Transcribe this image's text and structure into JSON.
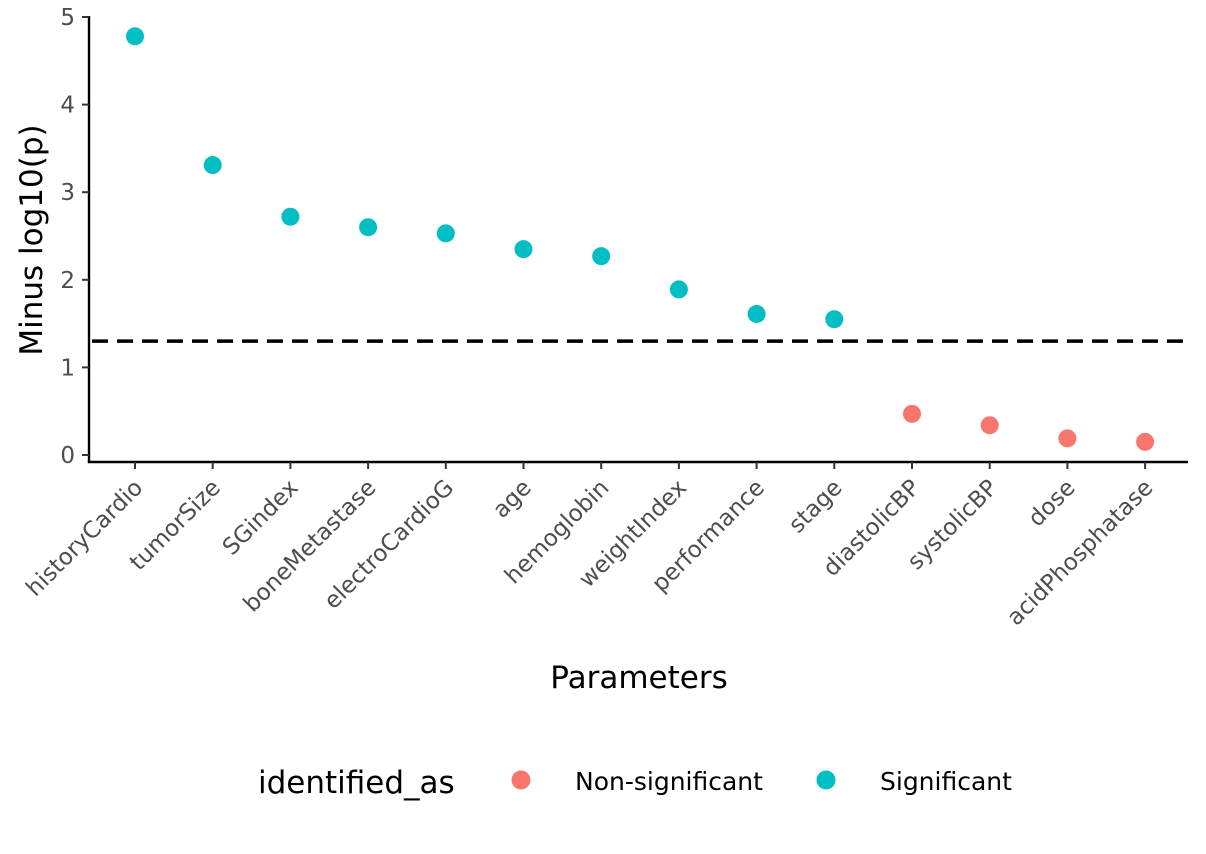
{
  "chart_data": {
    "type": "scatter",
    "title": "",
    "xlabel": "Parameters",
    "ylabel": "Minus log10(p)",
    "ylim": [
      0,
      5
    ],
    "yticks": [
      0,
      1,
      2,
      3,
      4,
      5
    ],
    "grid": false,
    "threshold": 1.3,
    "categories": [
      "historyCardio",
      "tumorSize",
      "SGindex",
      "boneMetastase",
      "electroCardioG",
      "age",
      "hemoglobin",
      "weightIndex",
      "performance",
      "stage",
      "diastolicBP",
      "systolicBP",
      "dose",
      "acidPhosphatase"
    ],
    "series": [
      {
        "name": "Significant",
        "color": "#00BFC4",
        "points": [
          {
            "x": "historyCardio",
            "y": 4.78
          },
          {
            "x": "tumorSize",
            "y": 3.31
          },
          {
            "x": "SGindex",
            "y": 2.72
          },
          {
            "x": "boneMetastase",
            "y": 2.6
          },
          {
            "x": "electroCardioG",
            "y": 2.53
          },
          {
            "x": "age",
            "y": 2.35
          },
          {
            "x": "hemoglobin",
            "y": 2.27
          },
          {
            "x": "weightIndex",
            "y": 1.89
          },
          {
            "x": "performance",
            "y": 1.61
          },
          {
            "x": "stage",
            "y": 1.55
          }
        ]
      },
      {
        "name": "Non-significant",
        "color": "#F8766D",
        "points": [
          {
            "x": "diastolicBP",
            "y": 0.47
          },
          {
            "x": "systolicBP",
            "y": 0.34
          },
          {
            "x": "dose",
            "y": 0.19
          },
          {
            "x": "acidPhosphatase",
            "y": 0.15
          }
        ]
      }
    ],
    "legend": {
      "title": "identified_as",
      "position": "bottom",
      "entries": [
        {
          "label": "Non-significant",
          "color": "#F8766D"
        },
        {
          "label": "Significant",
          "color": "#00BFC4"
        }
      ]
    }
  }
}
